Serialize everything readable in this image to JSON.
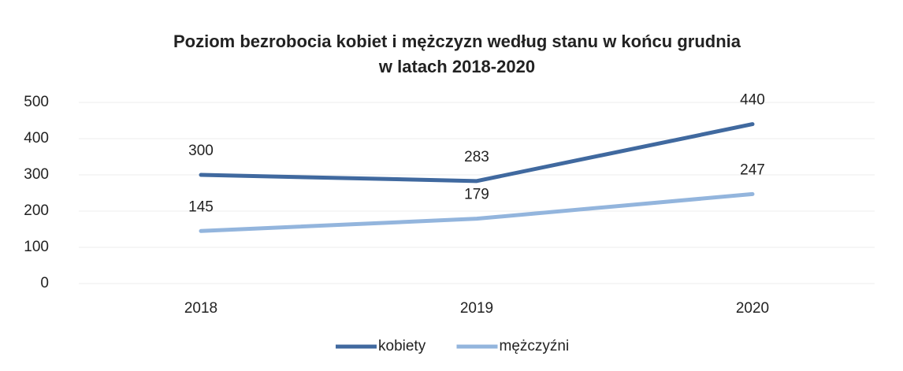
{
  "chart_data": {
    "type": "line",
    "title": [
      "Poziom bezrobocia kobiet i mężczyzn według stanu w końcu grudnia",
      "w latach 2018-2020"
    ],
    "categories": [
      "2018",
      "2019",
      "2020"
    ],
    "series": [
      {
        "name": "kobiety",
        "color": "#40699f",
        "values": [
          300,
          283,
          440
        ]
      },
      {
        "name": "mężczyźni",
        "color": "#93b5dd",
        "values": [
          145,
          179,
          247
        ]
      }
    ],
    "ylim": [
      0,
      500
    ],
    "yticks": [
      0,
      100,
      200,
      300,
      400,
      500
    ],
    "grid": true,
    "legend": "bottom"
  }
}
